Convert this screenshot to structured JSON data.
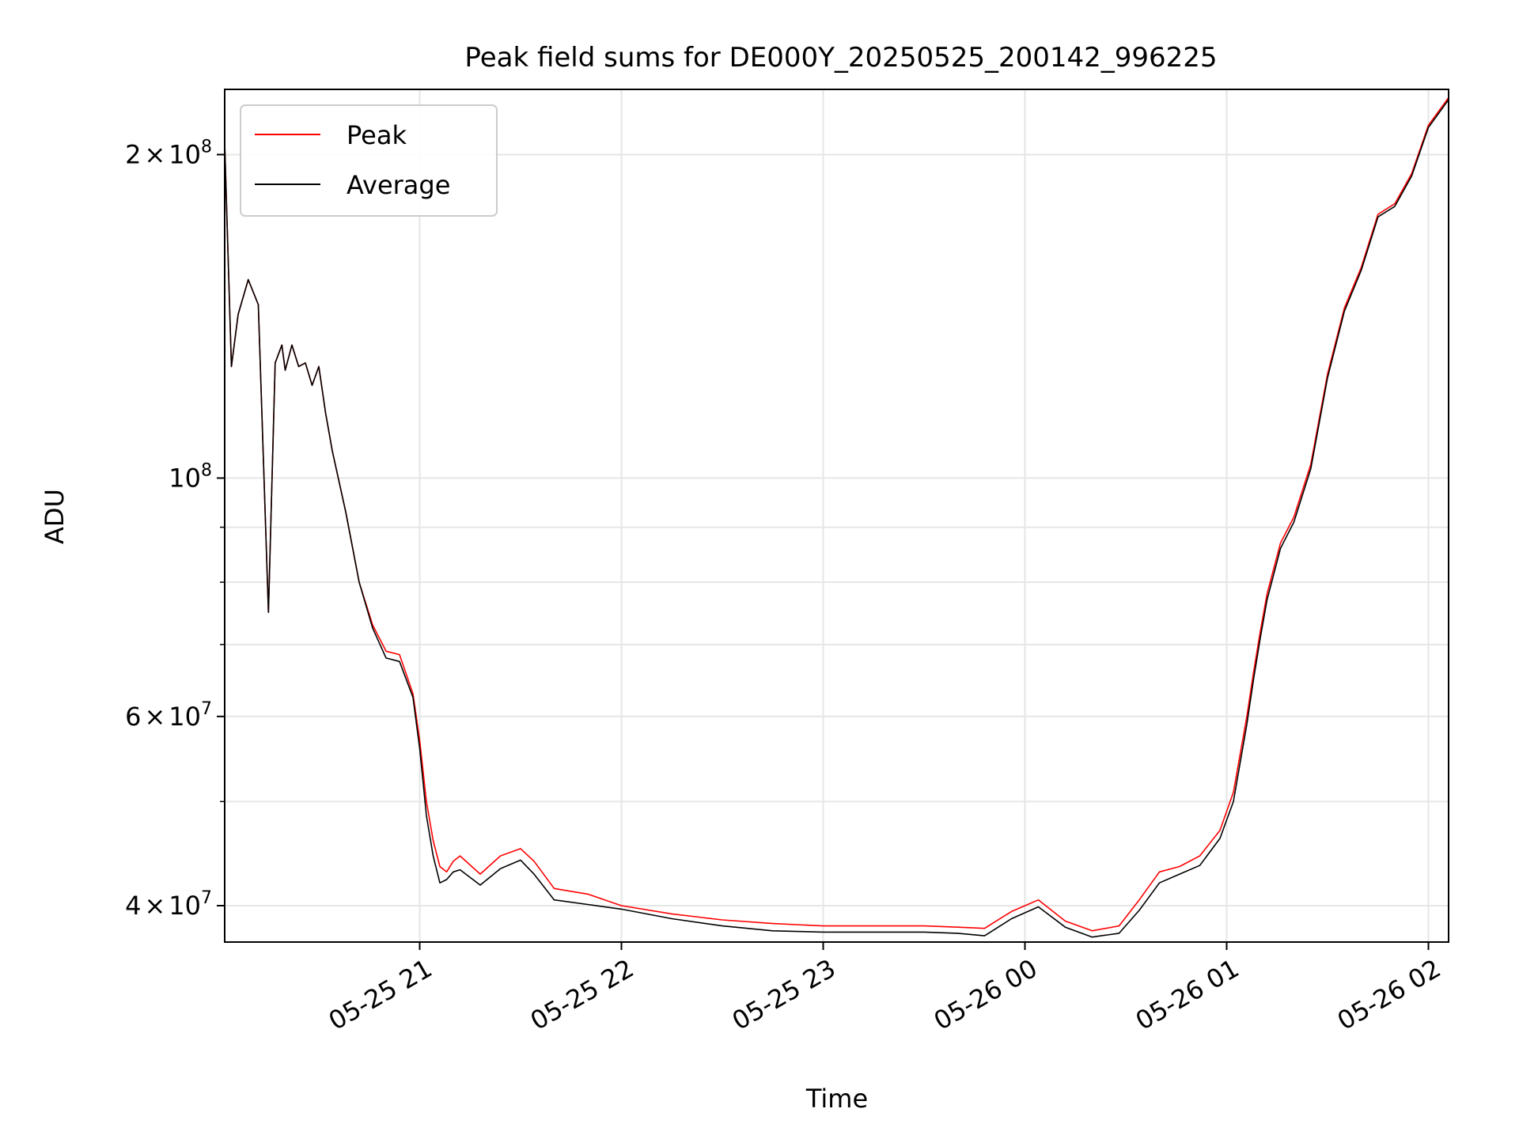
{
  "chart_data": {
    "type": "line",
    "title": "Peak field sums for DE000Y_20250525_200142_996225",
    "xlabel": "Time",
    "ylabel": "ADU",
    "y_scale": "log",
    "ylim": [
      37000000,
      230000000
    ],
    "xlim": [
      "2025-05-25 20:02",
      "2025-05-26 02:06"
    ],
    "grid": true,
    "legend_position": "top-left",
    "x_ticks": [
      {
        "value": "2025-05-25 21:00",
        "label": "05-25 21"
      },
      {
        "value": "2025-05-25 22:00",
        "label": "05-25 22"
      },
      {
        "value": "2025-05-25 23:00",
        "label": "05-25 23"
      },
      {
        "value": "2025-05-26 00:00",
        "label": "05-26 00"
      },
      {
        "value": "2025-05-26 01:00",
        "label": "05-26 01"
      },
      {
        "value": "2025-05-26 02:00",
        "label": "05-26 02"
      }
    ],
    "y_ticks": [
      {
        "value": 40000000,
        "mantissa": "4",
        "exponent": "7"
      },
      {
        "value": 60000000,
        "mantissa": "6",
        "exponent": "7"
      },
      {
        "value": 100000000,
        "mantissa": "",
        "exponent": "8"
      },
      {
        "value": 200000000,
        "mantissa": "2",
        "exponent": "8"
      }
    ],
    "y_minor_ticks": [
      50000000,
      70000000,
      80000000,
      90000000
    ],
    "series": [
      {
        "name": "Peak",
        "color": "#ff0000",
        "x": [
          "2025-05-25 20:02",
          "2025-05-25 20:04",
          "2025-05-25 20:06",
          "2025-05-25 20:09",
          "2025-05-25 20:12",
          "2025-05-25 20:15",
          "2025-05-25 20:17",
          "2025-05-25 20:19",
          "2025-05-25 20:20",
          "2025-05-25 20:22",
          "2025-05-25 20:24",
          "2025-05-25 20:26",
          "2025-05-25 20:28",
          "2025-05-25 20:30",
          "2025-05-25 20:32",
          "2025-05-25 20:34",
          "2025-05-25 20:38",
          "2025-05-25 20:42",
          "2025-05-25 20:46",
          "2025-05-25 20:50",
          "2025-05-25 20:54",
          "2025-05-25 20:58",
          "2025-05-25 21:00",
          "2025-05-25 21:02",
          "2025-05-25 21:04",
          "2025-05-25 21:06",
          "2025-05-25 21:08",
          "2025-05-25 21:10",
          "2025-05-25 21:12",
          "2025-05-25 21:18",
          "2025-05-25 21:24",
          "2025-05-25 21:30",
          "2025-05-25 21:34",
          "2025-05-25 21:40",
          "2025-05-25 21:50",
          "2025-05-25 22:00",
          "2025-05-25 22:15",
          "2025-05-25 22:30",
          "2025-05-25 22:45",
          "2025-05-25 23:00",
          "2025-05-25 23:15",
          "2025-05-25 23:30",
          "2025-05-25 23:40",
          "2025-05-25 23:48",
          "2025-05-25 23:56",
          "2025-05-26 00:04",
          "2025-05-26 00:12",
          "2025-05-26 00:20",
          "2025-05-26 00:28",
          "2025-05-26 00:34",
          "2025-05-26 00:40",
          "2025-05-26 00:46",
          "2025-05-26 00:52",
          "2025-05-26 00:58",
          "2025-05-26 01:02",
          "2025-05-26 01:06",
          "2025-05-26 01:08",
          "2025-05-26 01:10",
          "2025-05-26 01:12",
          "2025-05-26 01:16",
          "2025-05-26 01:20",
          "2025-05-26 01:25",
          "2025-05-26 01:30",
          "2025-05-26 01:35",
          "2025-05-26 01:40",
          "2025-05-26 01:45",
          "2025-05-26 01:50",
          "2025-05-26 01:55",
          "2025-05-26 02:00",
          "2025-05-26 02:06"
        ],
        "y": [
          205000000,
          127000000,
          142000000,
          153000000,
          145000000,
          75000000,
          128000000,
          133000000,
          126000000,
          133000000,
          127000000,
          128000000,
          122000000,
          127000000,
          115000000,
          106000000,
          93000000,
          80000000,
          73000000,
          69000000,
          68500000,
          63000000,
          57000000,
          50000000,
          46000000,
          43500000,
          43000000,
          44000000,
          44500000,
          42800000,
          44500000,
          45200000,
          44000000,
          41500000,
          41000000,
          40000000,
          39300000,
          38800000,
          38500000,
          38300000,
          38300000,
          38300000,
          38200000,
          38100000,
          39500000,
          40500000,
          38700000,
          37900000,
          38300000,
          40500000,
          43000000,
          43500000,
          44500000,
          47000000,
          51000000,
          60000000,
          66000000,
          72000000,
          78000000,
          87000000,
          92000000,
          103000000,
          125000000,
          144000000,
          157000000,
          176000000,
          180000000,
          192000000,
          213000000,
          226000000
        ]
      },
      {
        "name": "Average",
        "color": "#000000",
        "x": [
          "2025-05-25 20:02",
          "2025-05-25 20:04",
          "2025-05-25 20:06",
          "2025-05-25 20:09",
          "2025-05-25 20:12",
          "2025-05-25 20:15",
          "2025-05-25 20:17",
          "2025-05-25 20:19",
          "2025-05-25 20:20",
          "2025-05-25 20:22",
          "2025-05-25 20:24",
          "2025-05-25 20:26",
          "2025-05-25 20:28",
          "2025-05-25 20:30",
          "2025-05-25 20:32",
          "2025-05-25 20:34",
          "2025-05-25 20:38",
          "2025-05-25 20:42",
          "2025-05-25 20:46",
          "2025-05-25 20:50",
          "2025-05-25 20:54",
          "2025-05-25 20:58",
          "2025-05-25 21:00",
          "2025-05-25 21:02",
          "2025-05-25 21:04",
          "2025-05-25 21:06",
          "2025-05-25 21:08",
          "2025-05-25 21:10",
          "2025-05-25 21:12",
          "2025-05-25 21:18",
          "2025-05-25 21:24",
          "2025-05-25 21:30",
          "2025-05-25 21:34",
          "2025-05-25 21:40",
          "2025-05-25 21:50",
          "2025-05-25 22:00",
          "2025-05-25 22:15",
          "2025-05-25 22:30",
          "2025-05-25 22:45",
          "2025-05-25 23:00",
          "2025-05-25 23:15",
          "2025-05-25 23:30",
          "2025-05-25 23:40",
          "2025-05-25 23:48",
          "2025-05-25 23:56",
          "2025-05-26 00:04",
          "2025-05-26 00:12",
          "2025-05-26 00:20",
          "2025-05-26 00:28",
          "2025-05-26 00:34",
          "2025-05-26 00:40",
          "2025-05-26 00:46",
          "2025-05-26 00:52",
          "2025-05-26 00:58",
          "2025-05-26 01:02",
          "2025-05-26 01:06",
          "2025-05-26 01:08",
          "2025-05-26 01:10",
          "2025-05-26 01:12",
          "2025-05-26 01:16",
          "2025-05-26 01:20",
          "2025-05-26 01:25",
          "2025-05-26 01:30",
          "2025-05-26 01:35",
          "2025-05-26 01:40",
          "2025-05-26 01:45",
          "2025-05-26 01:50",
          "2025-05-26 01:55",
          "2025-05-26 02:00",
          "2025-05-26 02:06"
        ],
        "y": [
          205000000,
          127000000,
          142000000,
          153000000,
          145000000,
          75000000,
          128000000,
          133000000,
          126000000,
          133000000,
          127000000,
          128000000,
          122000000,
          127000000,
          115000000,
          106000000,
          93000000,
          80000000,
          72500000,
          68000000,
          67500000,
          62500000,
          56000000,
          48500000,
          44500000,
          42000000,
          42300000,
          43000000,
          43200000,
          41800000,
          43300000,
          44100000,
          42800000,
          40500000,
          40100000,
          39700000,
          38900000,
          38300000,
          37900000,
          37800000,
          37800000,
          37800000,
          37700000,
          37500000,
          38900000,
          39900000,
          38200000,
          37400000,
          37700000,
          39600000,
          42000000,
          42800000,
          43600000,
          46200000,
          50000000,
          59000000,
          65000000,
          71000000,
          77000000,
          86000000,
          91000000,
          102000000,
          124000000,
          143000000,
          156000000,
          175000000,
          179000000,
          191000000,
          212000000,
          225000000
        ]
      }
    ]
  }
}
